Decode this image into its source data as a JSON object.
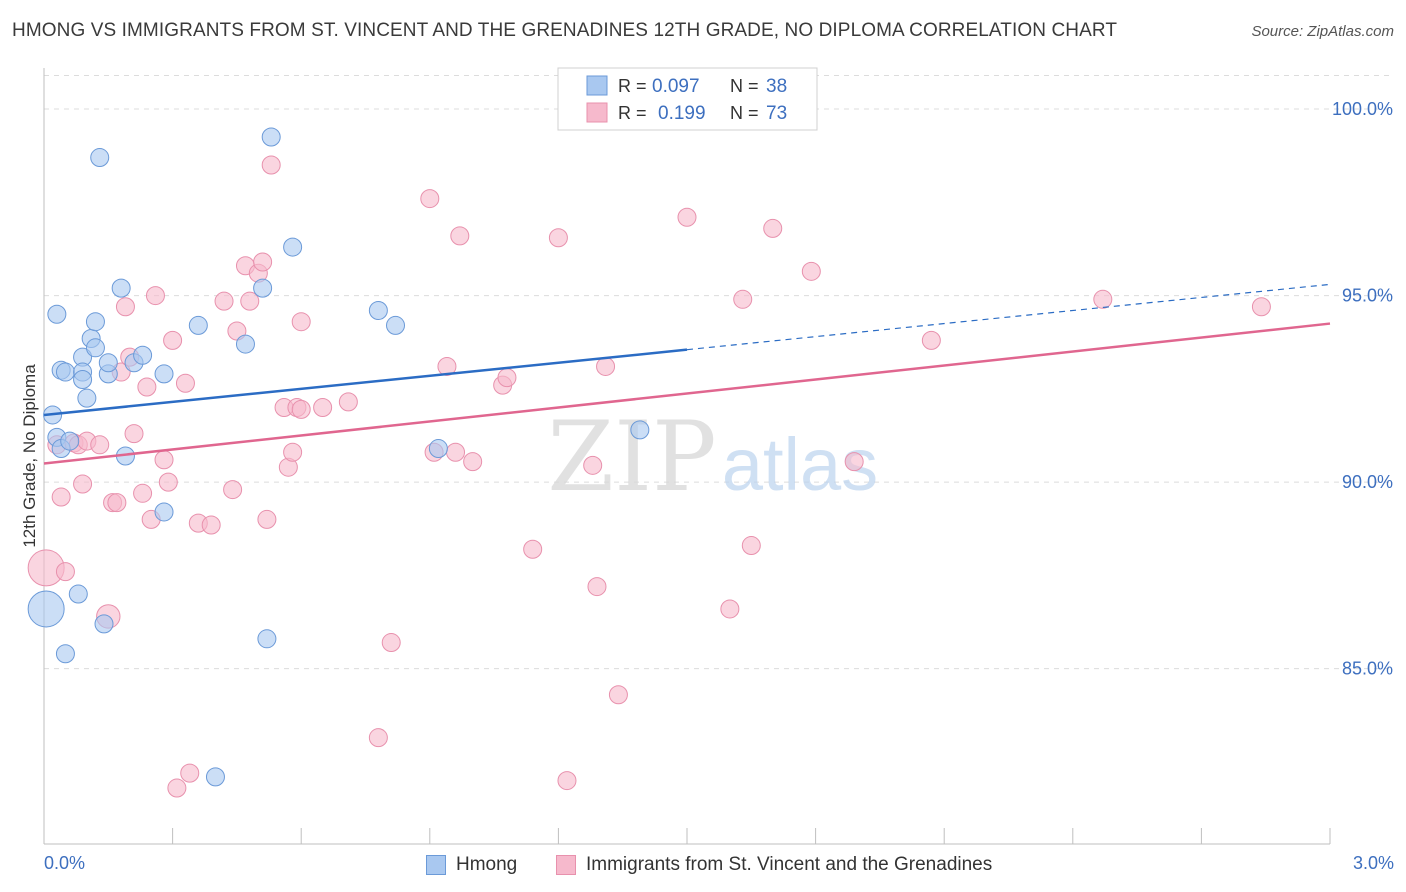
{
  "title": "HMONG VS IMMIGRANTS FROM ST. VINCENT AND THE GRENADINES 12TH GRADE, NO DIPLOMA CORRELATION CHART",
  "source": "Source: ZipAtlas.com",
  "watermark": {
    "zip": "ZIP",
    "atlas": "atlas"
  },
  "colors": {
    "hmong_fill": "#a9c8f0",
    "hmong_stroke": "#6b9ad8",
    "hmong_line": "#2b6cc4",
    "svg_fill": "#f6b9cc",
    "svg_stroke": "#e891ad",
    "svg_line": "#e0668f",
    "axis_label": "#3d6fbf",
    "grid": "#dcdcdc"
  },
  "legend": {
    "series": [
      {
        "r_label": "R =",
        "r_value": "0.097",
        "n_label": "N =",
        "n_value": "38"
      },
      {
        "r_label": "R =",
        "r_value": "0.199",
        "n_label": "N =",
        "n_value": "73"
      }
    ]
  },
  "bottom_legend": [
    "Hmong",
    "Immigrants from St. Vincent and the Grenadines"
  ],
  "chart_data": {
    "type": "scatter",
    "title": "HMONG VS IMMIGRANTS FROM ST. VINCENT AND THE GRENADINES 12TH GRADE, NO DIPLOMA CORRELATION CHART",
    "xlabel": "",
    "ylabel": "12th Grade, No Diploma",
    "xlim": [
      0,
      3.0
    ],
    "ylim": [
      80.3,
      101.1
    ],
    "x_tick_labels": {
      "left": "0.0%",
      "right": "3.0%"
    },
    "y_ticks": [
      {
        "value": 100.0,
        "label": "100.0%"
      },
      {
        "value": 95.0,
        "label": "95.0%"
      },
      {
        "value": 90.0,
        "label": "90.0%"
      },
      {
        "value": 85.0,
        "label": "85.0%"
      }
    ],
    "series": [
      {
        "name": "Hmong",
        "r": 0.097,
        "n": 38,
        "trend": {
          "x0": 0.0,
          "y0": 91.8,
          "x1": 1.5,
          "y1": 93.55,
          "x_end": 3.0,
          "y_end": 95.3
        },
        "points": [
          {
            "x": 0.005,
            "y": 86.6,
            "s": 2.0
          },
          {
            "x": 0.02,
            "y": 91.8
          },
          {
            "x": 0.03,
            "y": 91.2
          },
          {
            "x": 0.03,
            "y": 94.5
          },
          {
            "x": 0.04,
            "y": 90.9
          },
          {
            "x": 0.04,
            "y": 93.0
          },
          {
            "x": 0.05,
            "y": 92.95
          },
          {
            "x": 0.05,
            "y": 85.4
          },
          {
            "x": 0.06,
            "y": 91.1
          },
          {
            "x": 0.08,
            "y": 87.0
          },
          {
            "x": 0.09,
            "y": 93.35
          },
          {
            "x": 0.09,
            "y": 92.95
          },
          {
            "x": 0.09,
            "y": 92.75
          },
          {
            "x": 0.1,
            "y": 92.25
          },
          {
            "x": 0.11,
            "y": 93.85
          },
          {
            "x": 0.12,
            "y": 93.6
          },
          {
            "x": 0.12,
            "y": 94.3
          },
          {
            "x": 0.13,
            "y": 98.7
          },
          {
            "x": 0.14,
            "y": 86.2
          },
          {
            "x": 0.15,
            "y": 92.9
          },
          {
            "x": 0.15,
            "y": 93.2
          },
          {
            "x": 0.18,
            "y": 95.2
          },
          {
            "x": 0.19,
            "y": 90.7
          },
          {
            "x": 0.21,
            "y": 93.2
          },
          {
            "x": 0.23,
            "y": 93.4
          },
          {
            "x": 0.28,
            "y": 92.9
          },
          {
            "x": 0.28,
            "y": 89.2
          },
          {
            "x": 0.36,
            "y": 94.2
          },
          {
            "x": 0.4,
            "y": 82.1
          },
          {
            "x": 0.47,
            "y": 93.7
          },
          {
            "x": 0.51,
            "y": 95.2
          },
          {
            "x": 0.52,
            "y": 85.8
          },
          {
            "x": 0.53,
            "y": 99.25
          },
          {
            "x": 0.58,
            "y": 96.3
          },
          {
            "x": 0.78,
            "y": 94.6
          },
          {
            "x": 0.82,
            "y": 94.2
          },
          {
            "x": 0.92,
            "y": 90.9
          },
          {
            "x": 1.39,
            "y": 91.4
          }
        ]
      },
      {
        "name": "Immigrants from St. Vincent and the Grenadines",
        "r": 0.199,
        "n": 73,
        "trend": {
          "x0": 0.0,
          "y0": 90.5,
          "x1": 3.0,
          "y1": 94.25
        },
        "points": [
          {
            "x": 0.005,
            "y": 87.7,
            "s": 2.0
          },
          {
            "x": 0.03,
            "y": 91.0
          },
          {
            "x": 0.04,
            "y": 89.6
          },
          {
            "x": 0.05,
            "y": 87.6
          },
          {
            "x": 0.07,
            "y": 91.05
          },
          {
            "x": 0.08,
            "y": 91.0
          },
          {
            "x": 0.09,
            "y": 89.95
          },
          {
            "x": 0.1,
            "y": 91.1
          },
          {
            "x": 0.13,
            "y": 91.0
          },
          {
            "x": 0.15,
            "y": 86.4,
            "s": 1.3
          },
          {
            "x": 0.16,
            "y": 89.45
          },
          {
            "x": 0.17,
            "y": 89.45
          },
          {
            "x": 0.18,
            "y": 92.95
          },
          {
            "x": 0.19,
            "y": 94.7
          },
          {
            "x": 0.2,
            "y": 93.35
          },
          {
            "x": 0.21,
            "y": 91.3
          },
          {
            "x": 0.23,
            "y": 89.7
          },
          {
            "x": 0.24,
            "y": 92.55
          },
          {
            "x": 0.25,
            "y": 89.0
          },
          {
            "x": 0.26,
            "y": 95.0
          },
          {
            "x": 0.28,
            "y": 90.6
          },
          {
            "x": 0.29,
            "y": 90.0
          },
          {
            "x": 0.3,
            "y": 93.8
          },
          {
            "x": 0.31,
            "y": 81.8
          },
          {
            "x": 0.33,
            "y": 92.65
          },
          {
            "x": 0.34,
            "y": 82.2
          },
          {
            "x": 0.36,
            "y": 88.9
          },
          {
            "x": 0.39,
            "y": 88.85
          },
          {
            "x": 0.42,
            "y": 94.85
          },
          {
            "x": 0.44,
            "y": 89.8
          },
          {
            "x": 0.45,
            "y": 94.05
          },
          {
            "x": 0.47,
            "y": 95.8
          },
          {
            "x": 0.48,
            "y": 94.85
          },
          {
            "x": 0.5,
            "y": 95.6
          },
          {
            "x": 0.51,
            "y": 95.9
          },
          {
            "x": 0.52,
            "y": 89.0
          },
          {
            "x": 0.53,
            "y": 98.5
          },
          {
            "x": 0.56,
            "y": 92.0
          },
          {
            "x": 0.57,
            "y": 90.4
          },
          {
            "x": 0.58,
            "y": 90.8
          },
          {
            "x": 0.59,
            "y": 92.0
          },
          {
            "x": 0.6,
            "y": 91.95
          },
          {
            "x": 0.6,
            "y": 94.3
          },
          {
            "x": 0.65,
            "y": 92.0
          },
          {
            "x": 0.71,
            "y": 92.15
          },
          {
            "x": 0.78,
            "y": 83.15
          },
          {
            "x": 0.81,
            "y": 85.7
          },
          {
            "x": 0.9,
            "y": 97.6
          },
          {
            "x": 0.91,
            "y": 90.8
          },
          {
            "x": 0.94,
            "y": 93.1
          },
          {
            "x": 0.96,
            "y": 90.8
          },
          {
            "x": 0.97,
            "y": 96.6
          },
          {
            "x": 1.0,
            "y": 90.55
          },
          {
            "x": 1.07,
            "y": 92.6
          },
          {
            "x": 1.08,
            "y": 92.8
          },
          {
            "x": 1.14,
            "y": 88.2
          },
          {
            "x": 1.2,
            "y": 96.55
          },
          {
            "x": 1.22,
            "y": 82.0
          },
          {
            "x": 1.28,
            "y": 90.45
          },
          {
            "x": 1.29,
            "y": 87.2
          },
          {
            "x": 1.31,
            "y": 93.1
          },
          {
            "x": 1.34,
            "y": 84.3
          },
          {
            "x": 1.5,
            "y": 97.1
          },
          {
            "x": 1.6,
            "y": 86.6
          },
          {
            "x": 1.63,
            "y": 94.9
          },
          {
            "x": 1.65,
            "y": 88.3
          },
          {
            "x": 1.7,
            "y": 96.8
          },
          {
            "x": 1.79,
            "y": 95.65
          },
          {
            "x": 1.89,
            "y": 90.55
          },
          {
            "x": 2.07,
            "y": 93.8
          },
          {
            "x": 2.47,
            "y": 94.9
          },
          {
            "x": 2.84,
            "y": 94.7
          }
        ]
      }
    ]
  }
}
